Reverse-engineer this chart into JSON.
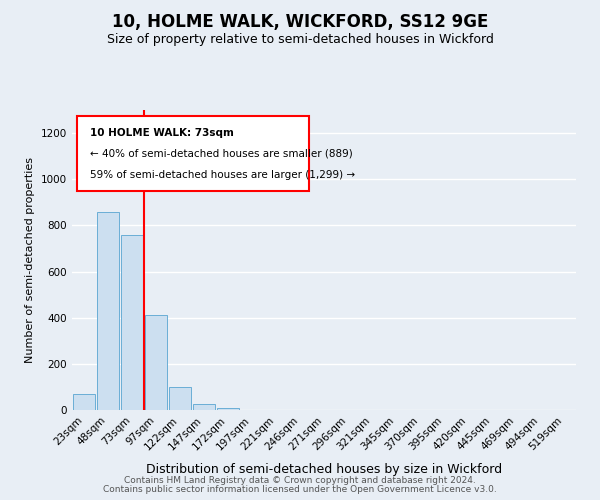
{
  "title": "10, HOLME WALK, WICKFORD, SS12 9GE",
  "subtitle": "Size of property relative to semi-detached houses in Wickford",
  "xlabel": "Distribution of semi-detached houses by size in Wickford",
  "ylabel": "Number of semi-detached properties",
  "categories": [
    "23sqm",
    "48sqm",
    "73sqm",
    "97sqm",
    "122sqm",
    "147sqm",
    "172sqm",
    "197sqm",
    "221sqm",
    "246sqm",
    "271sqm",
    "296sqm",
    "321sqm",
    "345sqm",
    "370sqm",
    "395sqm",
    "420sqm",
    "445sqm",
    "469sqm",
    "494sqm",
    "519sqm"
  ],
  "values": [
    70,
    860,
    760,
    410,
    100,
    28,
    10,
    2,
    0,
    0,
    0,
    0,
    0,
    0,
    0,
    0,
    0,
    0,
    0,
    0,
    0
  ],
  "bar_color": "#ccdff0",
  "bar_edge_color": "#6aaed6",
  "annotation_box_text": [
    "10 HOLME WALK: 73sqm",
    "← 40% of semi-detached houses are smaller (889)",
    "59% of semi-detached houses are larger (1,299) →"
  ],
  "ylim": [
    0,
    1300
  ],
  "yticks": [
    0,
    200,
    400,
    600,
    800,
    1000,
    1200
  ],
  "background_color": "#e8eef5",
  "plot_bg_color": "#e8eef5",
  "grid_color": "#ffffff",
  "footer_line1": "Contains HM Land Registry data © Crown copyright and database right 2024.",
  "footer_line2": "Contains public sector information licensed under the Open Government Licence v3.0.",
  "title_fontsize": 12,
  "subtitle_fontsize": 9,
  "xlabel_fontsize": 9,
  "ylabel_fontsize": 8,
  "tick_fontsize": 7.5,
  "footer_fontsize": 6.5
}
